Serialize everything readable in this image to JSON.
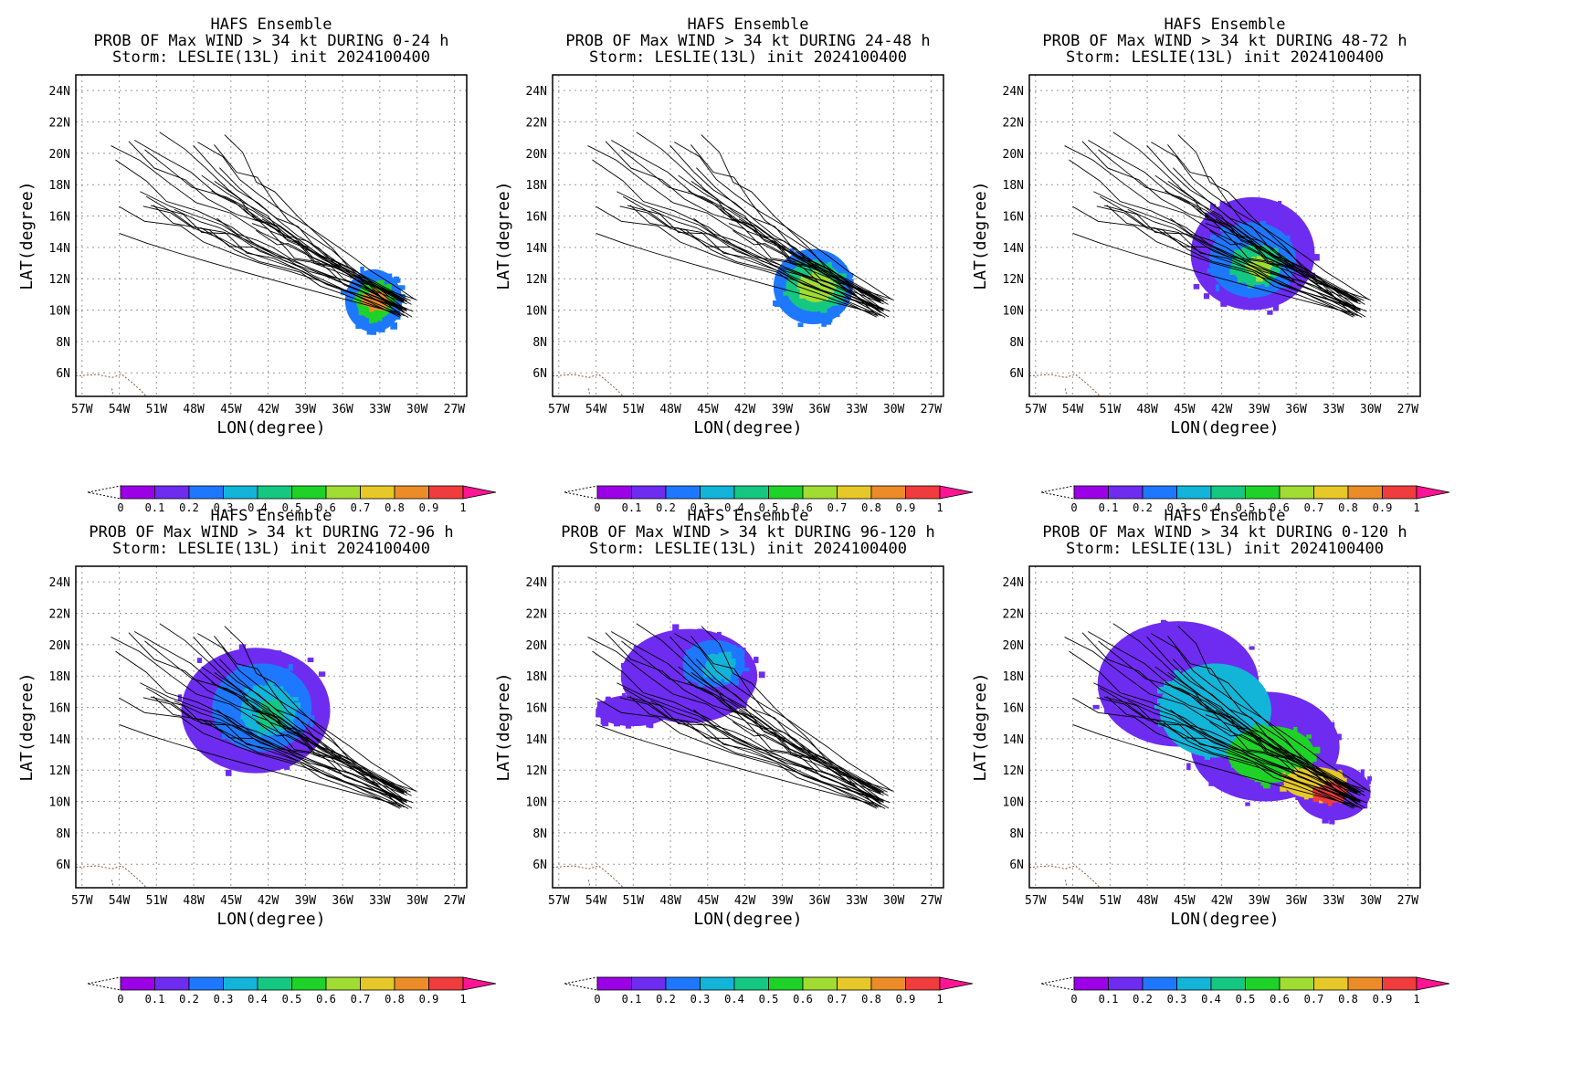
{
  "figure": {
    "colorbar_ticks": [
      "0",
      "0.1",
      "0.2",
      "0.3",
      "0.4",
      "0.5",
      "0.6",
      "0.7",
      "0.8",
      "0.9",
      "1"
    ],
    "colorbar_colors": [
      "#9b00e6",
      "#6e2cf0",
      "#1e78ff",
      "#12b4d8",
      "#14c882",
      "#1ed228",
      "#a0dc32",
      "#e6c828",
      "#eb8c28",
      "#f03c3c"
    ],
    "extend_high_color": "#ff1493",
    "coastline_color": "#8b5a3c"
  },
  "chart_data": [
    {
      "type": "heatmap",
      "title": [
        "HAFS Ensemble",
        "PROB OF Max WIND > 34 kt DURING  0-24 h",
        "Storm: LESLIE(13L) init 2024100400"
      ],
      "xlabel": "LON(degree)",
      "ylabel": "LAT(degree)",
      "xlim": [
        -57.5,
        -26
      ],
      "ylim": [
        4.5,
        25
      ],
      "x_ticks": [
        "57W",
        "54W",
        "51W",
        "48W",
        "45W",
        "42W",
        "39W",
        "36W",
        "33W",
        "30W",
        "27W"
      ],
      "y_ticks": [
        "6N",
        "8N",
        "10N",
        "12N",
        "14N",
        "16N",
        "18N",
        "20N",
        "22N",
        "24N"
      ],
      "grid": true,
      "colorbar": "bottom",
      "tracks_shown": true,
      "probability_blobs": [
        {
          "lon": -33.5,
          "lat": 10.6,
          "rlon": 2.3,
          "rlat": 2.0,
          "p": 0.2
        },
        {
          "lon": -33.4,
          "lat": 10.6,
          "rlon": 1.5,
          "rlat": 1.2,
          "p": 0.5
        },
        {
          "lon": -33.3,
          "lat": 10.6,
          "rlon": 0.9,
          "rlat": 0.6,
          "p": 0.8
        }
      ]
    },
    {
      "type": "heatmap",
      "title": [
        "HAFS Ensemble",
        "PROB OF Max WIND > 34 kt DURING 24-48 h",
        "Storm: LESLIE(13L) init 2024100400"
      ],
      "xlabel": "LON(degree)",
      "ylabel": "LAT(degree)",
      "xlim": [
        -57.5,
        -26
      ],
      "ylim": [
        4.5,
        25
      ],
      "x_ticks": [
        "57W",
        "54W",
        "51W",
        "48W",
        "45W",
        "42W",
        "39W",
        "36W",
        "33W",
        "30W",
        "27W"
      ],
      "y_ticks": [
        "6N",
        "8N",
        "10N",
        "12N",
        "14N",
        "16N",
        "18N",
        "20N",
        "22N",
        "24N"
      ],
      "grid": true,
      "colorbar": "bottom",
      "tracks_shown": true,
      "probability_blobs": [
        {
          "lon": -36.5,
          "lat": 11.5,
          "rlon": 3.2,
          "rlat": 2.4,
          "p": 0.2
        },
        {
          "lon": -36.4,
          "lat": 11.5,
          "rlon": 2.3,
          "rlat": 1.6,
          "p": 0.4
        },
        {
          "lon": -36.3,
          "lat": 11.4,
          "rlon": 1.3,
          "rlat": 0.9,
          "p": 0.6
        }
      ]
    },
    {
      "type": "heatmap",
      "title": [
        "HAFS Ensemble",
        "PROB OF Max WIND > 34 kt DURING 48-72 h",
        "Storm: LESLIE(13L) init 2024100400"
      ],
      "xlabel": "LON(degree)",
      "ylabel": "LAT(degree)",
      "xlim": [
        -57.5,
        -26
      ],
      "ylim": [
        4.5,
        25
      ],
      "x_ticks": [
        "57W",
        "54W",
        "51W",
        "48W",
        "45W",
        "42W",
        "39W",
        "36W",
        "33W",
        "30W",
        "27W"
      ],
      "y_ticks": [
        "6N",
        "8N",
        "10N",
        "12N",
        "14N",
        "16N",
        "18N",
        "20N",
        "22N",
        "24N"
      ],
      "grid": true,
      "colorbar": "bottom",
      "tracks_shown": true,
      "probability_blobs": [
        {
          "lon": -39.5,
          "lat": 13.6,
          "rlon": 5.0,
          "rlat": 3.6,
          "p": 0.1
        },
        {
          "lon": -39.5,
          "lat": 13.2,
          "rlon": 3.5,
          "rlat": 2.4,
          "p": 0.2
        },
        {
          "lon": -39.2,
          "lat": 12.9,
          "rlon": 2.0,
          "rlat": 1.3,
          "p": 0.4
        },
        {
          "lon": -39.0,
          "lat": 12.7,
          "rlon": 0.9,
          "rlat": 0.6,
          "p": 0.6
        }
      ]
    },
    {
      "type": "heatmap",
      "title": [
        "HAFS Ensemble",
        "PROB OF Max WIND > 34 kt DURING 72-96 h",
        "Storm: LESLIE(13L) init 2024100400"
      ],
      "xlabel": "LON(degree)",
      "ylabel": "LAT(degree)",
      "xlim": [
        -57.5,
        -26
      ],
      "ylim": [
        4.5,
        25
      ],
      "x_ticks": [
        "57W",
        "54W",
        "51W",
        "48W",
        "45W",
        "42W",
        "39W",
        "36W",
        "33W",
        "30W",
        "27W"
      ],
      "y_ticks": [
        "6N",
        "8N",
        "10N",
        "12N",
        "14N",
        "16N",
        "18N",
        "20N",
        "22N",
        "24N"
      ],
      "grid": true,
      "colorbar": "bottom",
      "tracks_shown": true,
      "probability_blobs": [
        {
          "lon": -43.0,
          "lat": 15.8,
          "rlon": 6.0,
          "rlat": 4.0,
          "p": 0.1
        },
        {
          "lon": -42.5,
          "lat": 16.0,
          "rlon": 4.0,
          "rlat": 2.8,
          "p": 0.2
        },
        {
          "lon": -42.0,
          "lat": 15.8,
          "rlon": 2.2,
          "rlat": 1.6,
          "p": 0.3
        },
        {
          "lon": -41.8,
          "lat": 15.5,
          "rlon": 1.0,
          "rlat": 0.8,
          "p": 0.4
        }
      ]
    },
    {
      "type": "heatmap",
      "title": [
        "HAFS Ensemble",
        "PROB OF Max WIND > 34 kt DURING 96-120 h",
        "Storm: LESLIE(13L) init 2024100400"
      ],
      "xlabel": "LON(degree)",
      "ylabel": "LAT(degree)",
      "xlim": [
        -57.5,
        -26
      ],
      "ylim": [
        4.5,
        25
      ],
      "x_ticks": [
        "57W",
        "54W",
        "51W",
        "48W",
        "45W",
        "42W",
        "39W",
        "36W",
        "33W",
        "30W",
        "27W"
      ],
      "y_ticks": [
        "6N",
        "8N",
        "10N",
        "12N",
        "14N",
        "16N",
        "18N",
        "20N",
        "22N",
        "24N"
      ],
      "grid": true,
      "colorbar": "bottom",
      "tracks_shown": true,
      "probability_blobs": [
        {
          "lon": -46.5,
          "lat": 18.0,
          "rlon": 5.5,
          "rlat": 3.0,
          "p": 0.1
        },
        {
          "lon": -51.0,
          "lat": 15.8,
          "rlon": 3.0,
          "rlat": 1.0,
          "p": 0.1
        },
        {
          "lon": -44.5,
          "lat": 18.8,
          "rlon": 2.5,
          "rlat": 1.5,
          "p": 0.2
        },
        {
          "lon": -44.0,
          "lat": 18.6,
          "rlon": 1.2,
          "rlat": 0.8,
          "p": 0.3
        }
      ]
    },
    {
      "type": "heatmap",
      "title": [
        "HAFS Ensemble",
        "PROB OF Max WIND > 34 kt DURING 0-120 h",
        "Storm: LESLIE(13L) init 2024100400"
      ],
      "xlabel": "LON(degree)",
      "ylabel": "LAT(degree)",
      "xlim": [
        -57.5,
        -26
      ],
      "ylim": [
        4.5,
        25
      ],
      "x_ticks": [
        "57W",
        "54W",
        "51W",
        "48W",
        "45W",
        "42W",
        "39W",
        "36W",
        "33W",
        "30W",
        "27W"
      ],
      "y_ticks": [
        "6N",
        "8N",
        "10N",
        "12N",
        "14N",
        "16N",
        "18N",
        "20N",
        "22N",
        "24N"
      ],
      "grid": true,
      "colorbar": "bottom",
      "tracks_shown": true,
      "probability_blobs": [
        {
          "lon": -45.5,
          "lat": 17.5,
          "rlon": 6.5,
          "rlat": 4.0,
          "p": 0.1
        },
        {
          "lon": -38.5,
          "lat": 13.5,
          "rlon": 6.0,
          "rlat": 3.5,
          "p": 0.1
        },
        {
          "lon": -33.0,
          "lat": 10.6,
          "rlon": 3.0,
          "rlat": 1.8,
          "p": 0.1
        },
        {
          "lon": -42.5,
          "lat": 15.8,
          "rlon": 4.5,
          "rlat": 3.0,
          "p": 0.3
        },
        {
          "lon": -38.0,
          "lat": 13.0,
          "rlon": 3.5,
          "rlat": 1.8,
          "p": 0.5
        },
        {
          "lon": -34.5,
          "lat": 11.2,
          "rlon": 2.5,
          "rlat": 1.0,
          "p": 0.7
        },
        {
          "lon": -33.2,
          "lat": 10.5,
          "rlon": 1.3,
          "rlat": 0.6,
          "p": 0.9
        }
      ]
    }
  ]
}
